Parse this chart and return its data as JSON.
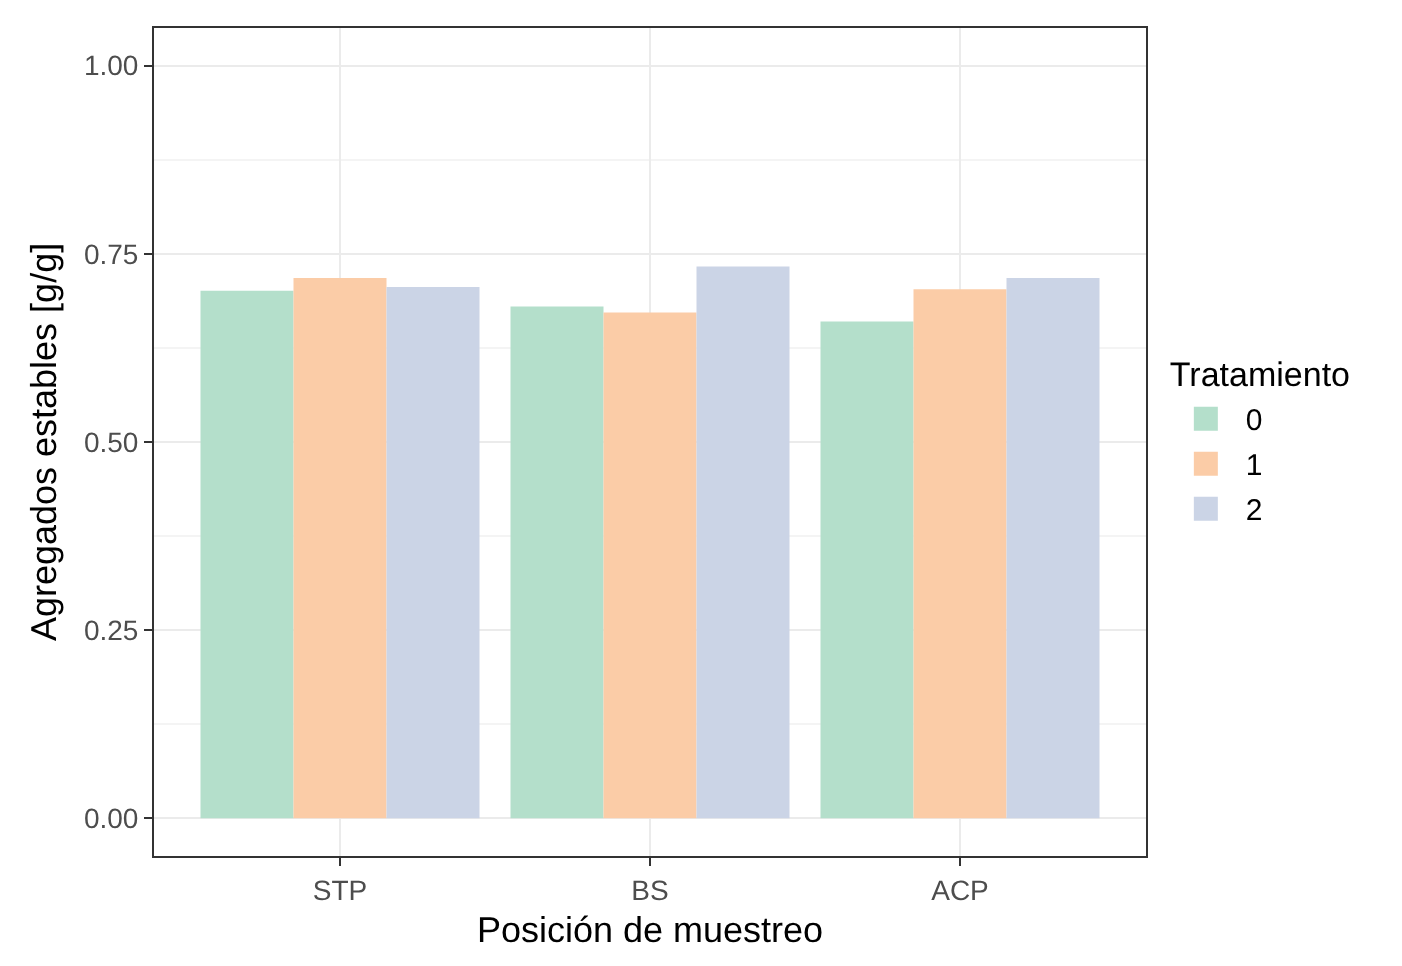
{
  "chart_data": {
    "type": "bar",
    "xlabel": "Posición de muestreo",
    "ylabel": "Agregados estables [g/g]",
    "legend_title": "Tratamiento",
    "categories": [
      "STP",
      "BS",
      "ACP"
    ],
    "series": [
      {
        "name": "0",
        "color": "#b4dfcb",
        "values": [
          0.701,
          0.68,
          0.66
        ]
      },
      {
        "name": "1",
        "color": "#fbcca7",
        "values": [
          0.718,
          0.672,
          0.703
        ]
      },
      {
        "name": "2",
        "color": "#cbd4e6",
        "values": [
          0.706,
          0.733,
          0.718
        ]
      }
    ],
    "ylim": [
      -0.05,
      1.05
    ],
    "yticks": [
      {
        "value": 0,
        "label": "0.00"
      },
      {
        "value": 0.25,
        "label": "0.25"
      },
      {
        "value": 0.5,
        "label": "0.50"
      },
      {
        "value": 0.75,
        "label": "0.75"
      },
      {
        "value": 1,
        "label": "1.00"
      }
    ],
    "grid": true,
    "legend": "right"
  }
}
